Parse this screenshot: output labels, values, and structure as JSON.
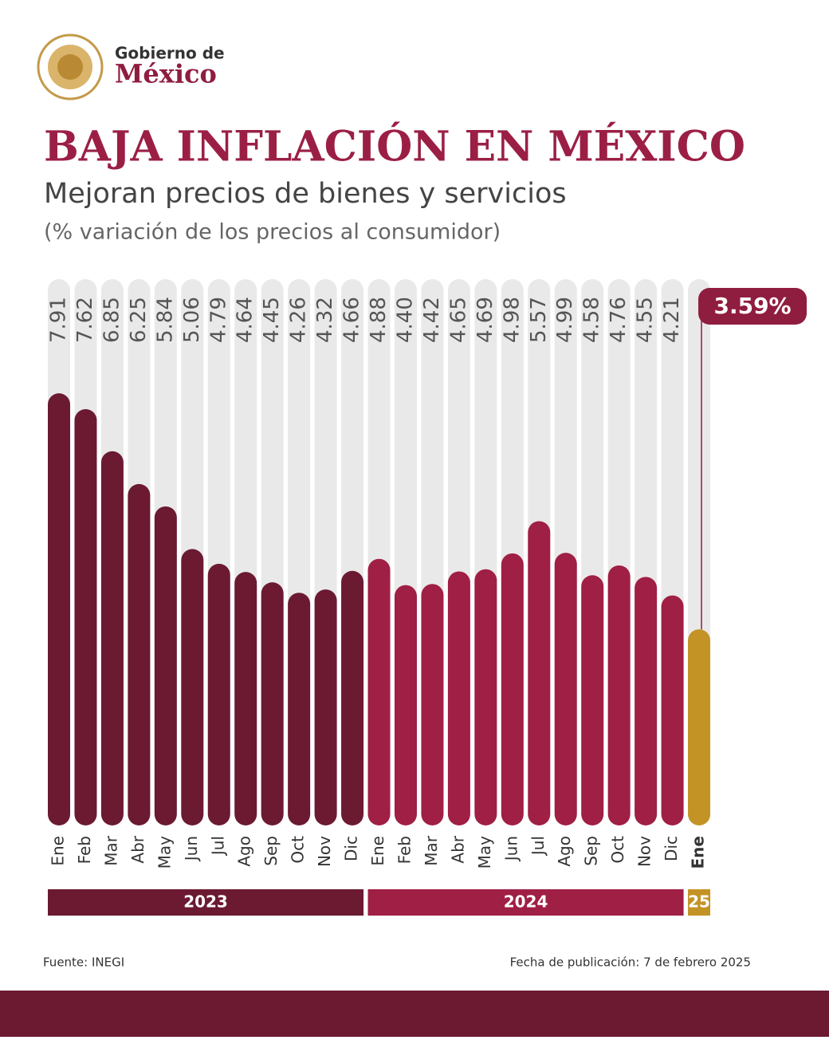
{
  "header": {
    "line1": "Gobierno de",
    "line2": "México"
  },
  "chart_data": {
    "type": "bar",
    "title": "BAJA INFLACIÓN EN MÉXICO",
    "subtitle": "Mejoran precios de bienes y servicios",
    "note": "(% variación de los precios al consumidor)",
    "ylim": [
      0,
      10
    ],
    "groups": [
      {
        "name": "2023",
        "color": "#6b1a32",
        "categories": [
          "Ene",
          "Feb",
          "Mar",
          "Abr",
          "May",
          "Jun",
          "Jul",
          "Ago",
          "Sep",
          "Oct",
          "Nov",
          "Dic"
        ],
        "values": [
          7.91,
          7.62,
          6.85,
          6.25,
          5.84,
          5.06,
          4.79,
          4.64,
          4.45,
          4.26,
          4.32,
          4.66
        ],
        "value_labels": [
          "7.91",
          "7.62",
          "6.85",
          "6.25",
          "5.84",
          "5.06",
          "4.79",
          "4.64",
          "4.45",
          "4.26",
          "4.32",
          "4.66"
        ]
      },
      {
        "name": "2024",
        "color": "#a01f44",
        "categories": [
          "Ene",
          "Feb",
          "Mar",
          "Abr",
          "May",
          "Jun",
          "Jul",
          "Ago",
          "Sep",
          "Oct",
          "Nov",
          "Dic"
        ],
        "values": [
          4.88,
          4.4,
          4.42,
          4.65,
          4.69,
          4.98,
          5.57,
          4.99,
          4.58,
          4.76,
          4.55,
          4.21
        ],
        "value_labels": [
          "4.88",
          "4.40",
          "4.42",
          "4.65",
          "4.69",
          "4.98",
          "5.57",
          "4.99",
          "4.58",
          "4.76",
          "4.55",
          "4.21"
        ]
      },
      {
        "name": "25",
        "color": "#c49325",
        "highlight": true,
        "categories": [
          "Ene"
        ],
        "values": [
          3.59
        ],
        "value_labels": [
          "3.59%"
        ]
      }
    ]
  },
  "footer": {
    "source": "Fuente: INEGI",
    "date": "Fecha de publicación: 7 de febrero 2025"
  }
}
